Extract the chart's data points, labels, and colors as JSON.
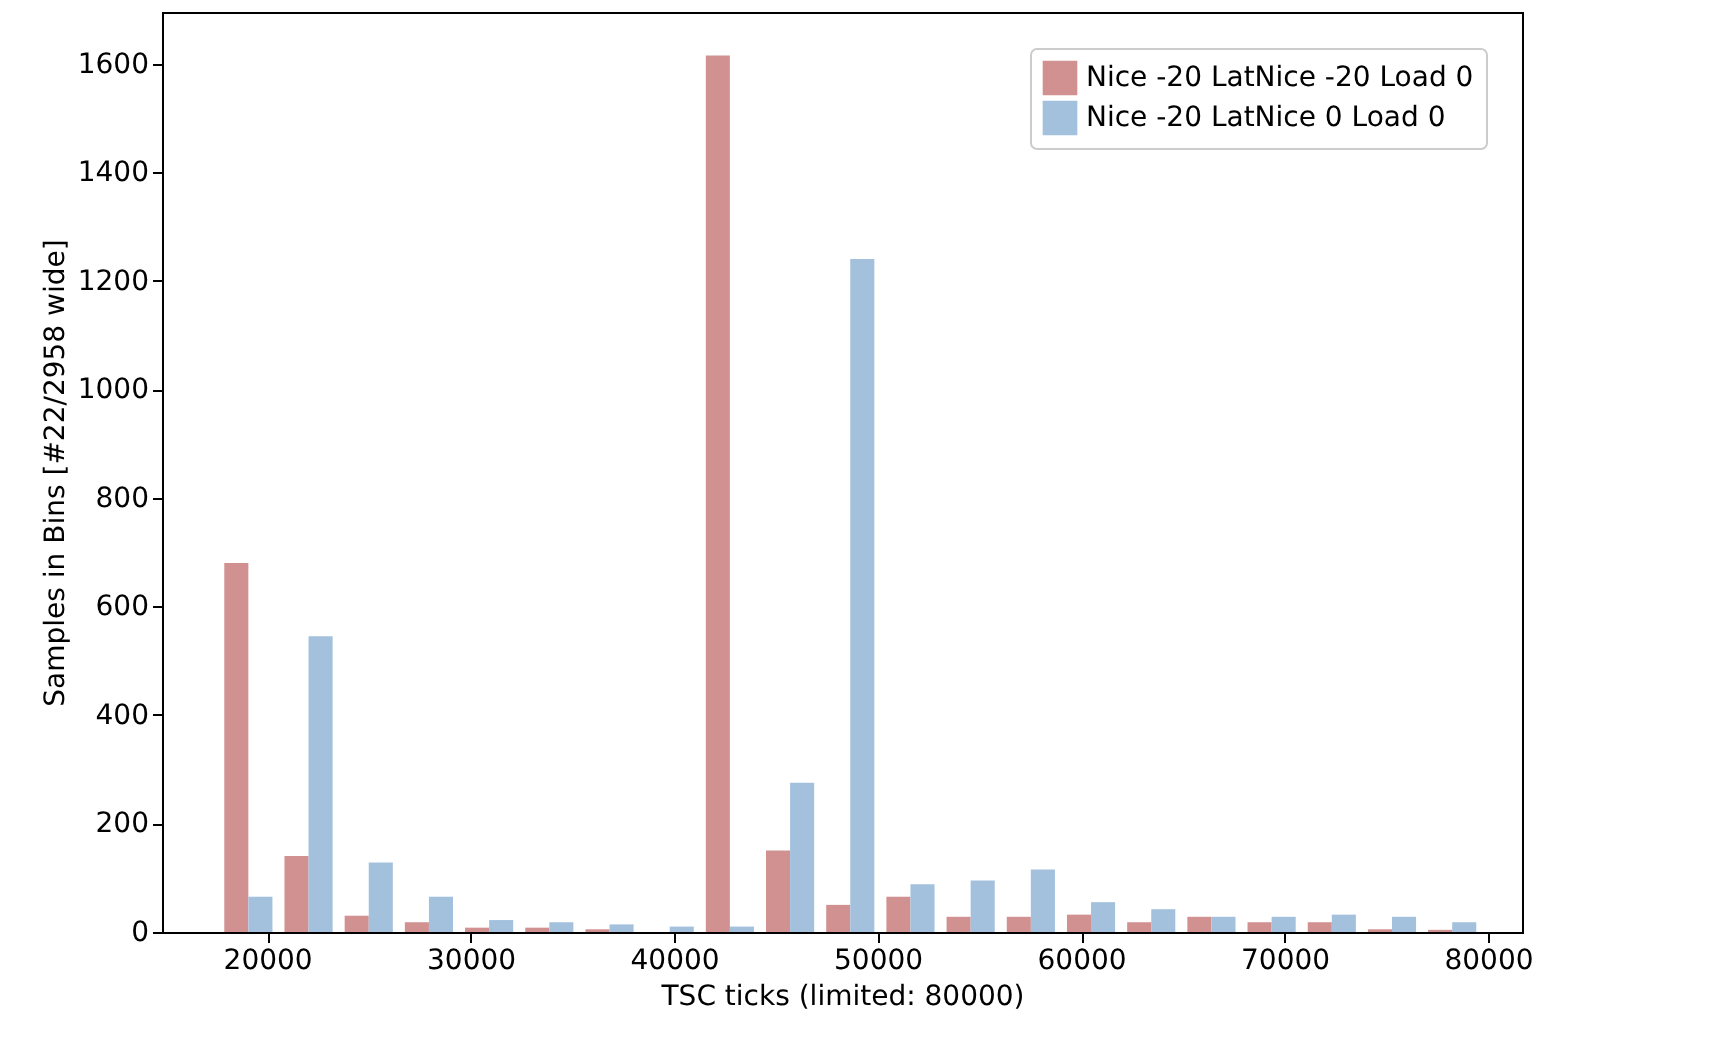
{
  "chart_data": {
    "type": "histogram",
    "xlabel": "TSC ticks (limited: 80000)",
    "ylabel": "Samples in Bins [#22/2958 wide]",
    "bins": [
      17600,
      20558,
      23516,
      26474,
      29432,
      32390,
      35348,
      38306,
      41264,
      44222,
      47180,
      50138,
      53096,
      56054,
      59012,
      61970,
      64928,
      67886,
      70844,
      73802,
      76760,
      79718
    ],
    "series": [
      {
        "name": "Nice -20 LatNice -20 Load 0",
        "color": "#d29191",
        "values": [
          680,
          140,
          30,
          18,
          8,
          8,
          5,
          0,
          1615,
          150,
          50,
          65,
          28,
          28,
          32,
          18,
          28,
          18,
          18,
          5,
          4
        ]
      },
      {
        "name": "Nice -20 LatNice   0 Load 0",
        "color": "#a3c1dd",
        "values": [
          65,
          545,
          128,
          65,
          22,
          18,
          14,
          10,
          10,
          275,
          1240,
          88,
          95,
          115,
          55,
          42,
          28,
          28,
          32,
          28,
          18
        ]
      }
    ],
    "xlim": [
      14835,
      81670
    ],
    "xticks": [
      20000,
      30000,
      40000,
      50000,
      60000,
      70000,
      80000
    ],
    "ylim": [
      0,
      1695
    ],
    "yticks": [
      0,
      200,
      400,
      600,
      800,
      1000,
      1200,
      1400,
      1600
    ],
    "legend": "top right",
    "grid": false
  }
}
